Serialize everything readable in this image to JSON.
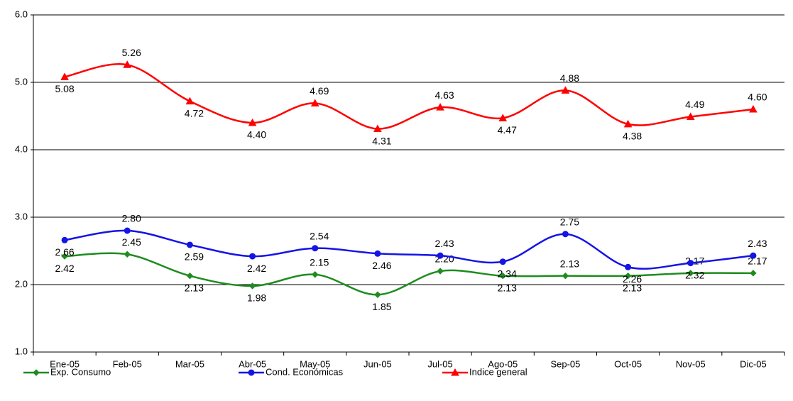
{
  "chart_data": {
    "type": "line",
    "categories": [
      "Ene-05",
      "Feb-05",
      "Mar-05",
      "Abr-05",
      "May-05",
      "Jun-05",
      "Jul-05",
      "Ago-05",
      "Sep-05",
      "Oct-05",
      "Nov-05",
      "Dic-05"
    ],
    "series": [
      {
        "name": "Exp. Consumo",
        "color": "#1e8c1e",
        "marker": "diamond",
        "values": [
          2.42,
          2.45,
          2.13,
          1.98,
          2.15,
          1.85,
          2.2,
          2.13,
          2.13,
          2.13,
          2.17,
          2.17
        ],
        "value_labels": [
          "2.42",
          "2.45",
          "2.13",
          "1.98",
          "2.15",
          "1.85",
          "2.20",
          "2.13",
          "2.13",
          "2.13",
          "2.17",
          "2.17"
        ]
      },
      {
        "name": "Cond. Económicas",
        "color": "#1414e6",
        "marker": "circle",
        "values": [
          2.66,
          2.8,
          2.59,
          2.42,
          2.54,
          2.46,
          2.43,
          2.34,
          2.75,
          2.26,
          2.32,
          2.43
        ],
        "value_labels": [
          "2.66",
          "2.80",
          "2.59",
          "2.42",
          "2.54",
          "2.46",
          "2.43",
          "2.34",
          "2.75",
          "2.26",
          "2.32",
          "2.43"
        ]
      },
      {
        "name": "Indice general",
        "color": "#ff0000",
        "marker": "triangle",
        "values": [
          5.08,
          5.26,
          4.72,
          4.4,
          4.69,
          4.31,
          4.63,
          4.47,
          4.88,
          4.38,
          4.49,
          4.6
        ],
        "value_labels": [
          "5.08",
          "5.26",
          "4.72",
          "4.40",
          "4.69",
          "4.31",
          "4.63",
          "4.47",
          "4.88",
          "4.38",
          "4.49",
          "4.60"
        ]
      }
    ],
    "ylim": [
      1,
      6
    ],
    "yticks": [
      {
        "value": 1,
        "label": "1.0"
      },
      {
        "value": 2,
        "label": "2.0"
      },
      {
        "value": 3,
        "label": "3.0"
      },
      {
        "value": 4,
        "label": "4.0"
      },
      {
        "value": 5,
        "label": "5.0"
      },
      {
        "value": 6,
        "label": "6.0"
      }
    ],
    "grid": true,
    "legend": "bottom"
  }
}
